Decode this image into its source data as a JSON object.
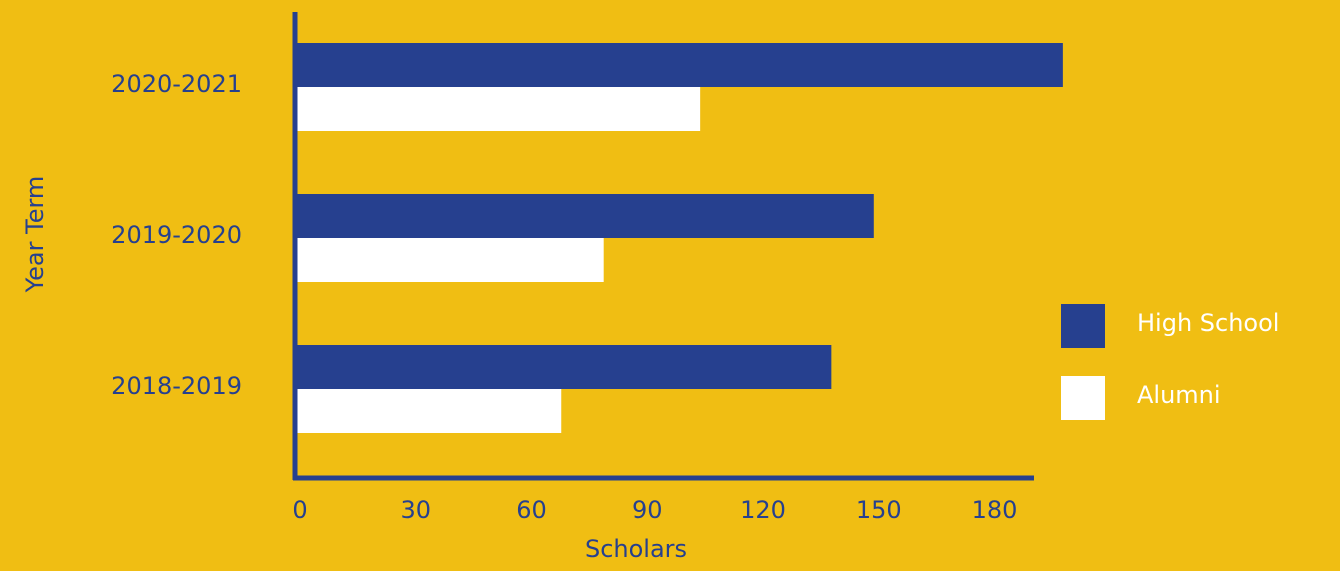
{
  "chart_data": {
    "type": "hbar",
    "categories": [
      "2020-2021",
      "2019-2020",
      "2018-2019"
    ],
    "series": [
      {
        "name": "High School",
        "color": "#26408f",
        "values": [
          199,
          150,
          139
        ]
      },
      {
        "name": "Alumni",
        "color": "#ffffff",
        "values": [
          105,
          80,
          69
        ]
      }
    ],
    "xlim": [
      0,
      191
    ],
    "xticks": [
      0,
      30,
      60,
      90,
      120,
      150,
      180
    ],
    "xlabel": "Scholars",
    "ylabel": "Year Term",
    "legend": "right"
  }
}
